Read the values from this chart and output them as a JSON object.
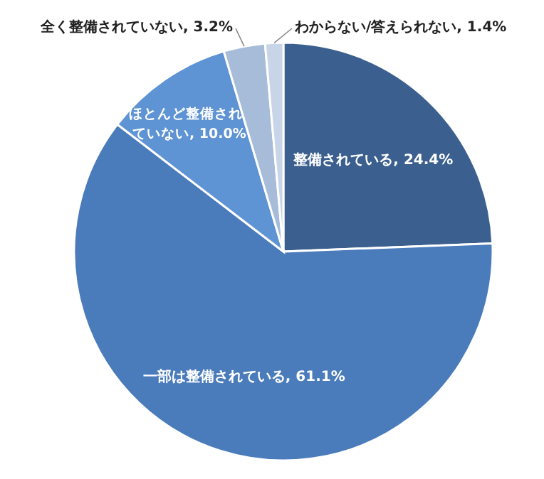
{
  "chart_data": {
    "type": "pie",
    "categories": [
      "整備されている",
      "一部は整備されている",
      "ほとんど整備されていない",
      "全く整備されていない",
      "わからない/答えられない"
    ],
    "values": [
      24.4,
      61.1,
      10.0,
      3.2,
      1.4
    ],
    "value_labels": [
      "24.4%",
      "61.1%",
      "10.0%",
      "3.2%",
      "1.4%"
    ],
    "colors": [
      "#3b5f8e",
      "#4a7bbb",
      "#5e93d4",
      "#a7bcd9",
      "#c8d5e8"
    ]
  }
}
